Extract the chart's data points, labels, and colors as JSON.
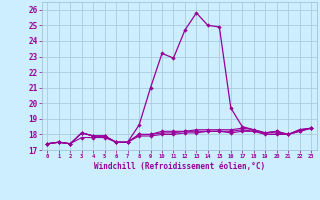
{
  "xlabel": "Windchill (Refroidissement éolien,°C)",
  "background_color": "#cceeff",
  "grid_color": "#aaccdd",
  "line_color": "#990099",
  "hours": [
    0,
    1,
    2,
    3,
    4,
    5,
    6,
    7,
    8,
    9,
    10,
    11,
    12,
    13,
    14,
    15,
    16,
    17,
    18,
    19,
    20,
    21,
    22,
    23
  ],
  "temp": [
    17.4,
    17.5,
    17.4,
    18.1,
    17.9,
    17.9,
    17.5,
    17.5,
    18.6,
    21.0,
    23.2,
    22.9,
    24.7,
    25.8,
    25.0,
    24.9,
    19.7,
    18.5,
    18.3,
    18.1,
    18.2,
    18.0,
    18.3,
    18.4
  ],
  "windchill1": [
    17.4,
    17.5,
    17.4,
    18.1,
    17.9,
    17.9,
    17.5,
    17.5,
    18.0,
    18.0,
    18.2,
    18.2,
    18.2,
    18.3,
    18.3,
    18.3,
    18.3,
    18.4,
    18.3,
    18.1,
    18.2,
    18.0,
    18.3,
    18.4
  ],
  "windchill2": [
    17.4,
    17.5,
    17.4,
    18.1,
    17.9,
    17.9,
    17.5,
    17.5,
    18.0,
    18.0,
    18.1,
    18.1,
    18.2,
    18.2,
    18.2,
    18.2,
    18.2,
    18.3,
    18.2,
    18.1,
    18.1,
    18.0,
    18.2,
    18.4
  ],
  "windchill3": [
    17.4,
    17.5,
    17.4,
    17.8,
    17.8,
    17.8,
    17.5,
    17.5,
    17.9,
    17.9,
    18.0,
    18.0,
    18.1,
    18.1,
    18.2,
    18.2,
    18.1,
    18.2,
    18.2,
    18.0,
    18.0,
    18.0,
    18.2,
    18.4
  ],
  "ylim": [
    17.0,
    26.5
  ],
  "yticks": [
    17,
    18,
    19,
    20,
    21,
    22,
    23,
    24,
    25,
    26
  ],
  "xlim": [
    -0.5,
    23.5
  ]
}
